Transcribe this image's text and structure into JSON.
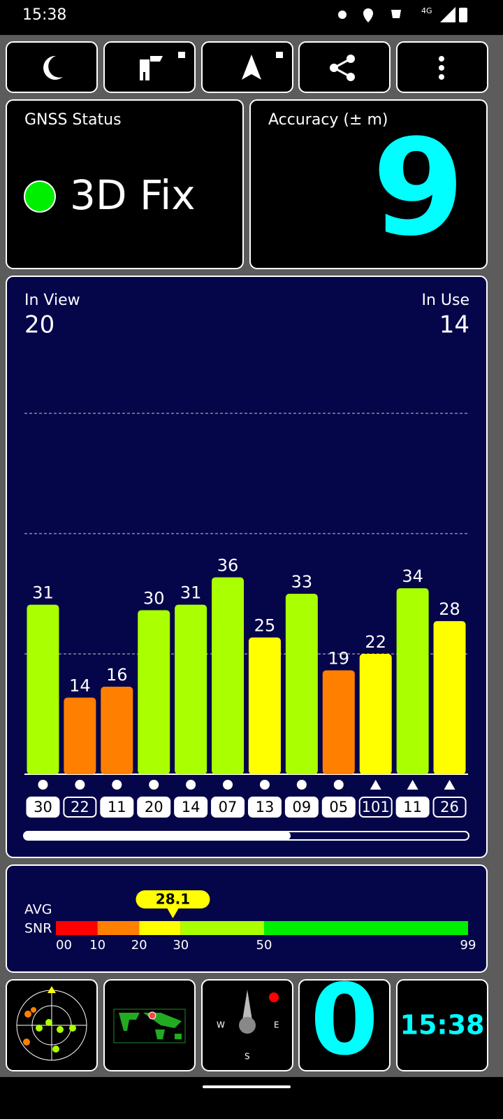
{
  "status_bar": {
    "time": "15:38"
  },
  "gnss": {
    "label": "GNSS Status",
    "status": "3D Fix"
  },
  "accuracy": {
    "label": "Accuracy (± m)",
    "value": "9"
  },
  "sats": {
    "in_view_label": "In View",
    "in_view": "20",
    "in_use_label": "In Use",
    "in_use": "14"
  },
  "chart_data": {
    "type": "bar",
    "categories": [
      "30",
      "22",
      "11",
      "20",
      "14",
      "07",
      "13",
      "09",
      "05",
      "101",
      "11",
      "26"
    ],
    "values": [
      31,
      14,
      16,
      30,
      31,
      36,
      25,
      33,
      19,
      22,
      34,
      28
    ],
    "markers": [
      "circle",
      "circle",
      "circle",
      "circle",
      "circle",
      "circle",
      "circle",
      "circle",
      "circle",
      "triangle",
      "triangle",
      "triangle"
    ],
    "used": [
      true,
      false,
      true,
      true,
      true,
      true,
      true,
      true,
      true,
      false,
      true,
      false
    ],
    "ylim": [
      0,
      66
    ],
    "yticks": [
      22,
      44,
      66
    ],
    "grid": true
  },
  "snr": {
    "label_1": "AVG",
    "label_2": "SNR",
    "value": 28.1,
    "xlim": [
      0,
      99
    ],
    "xticks": [
      {
        "value": 0,
        "label": "00"
      },
      10,
      20,
      30,
      50,
      99
    ],
    "colors": [
      "#ff0000",
      "#ff8000",
      "#ffff00",
      "#aaff00",
      "#00ee00"
    ]
  },
  "speed": "0",
  "clock": "15:38"
}
